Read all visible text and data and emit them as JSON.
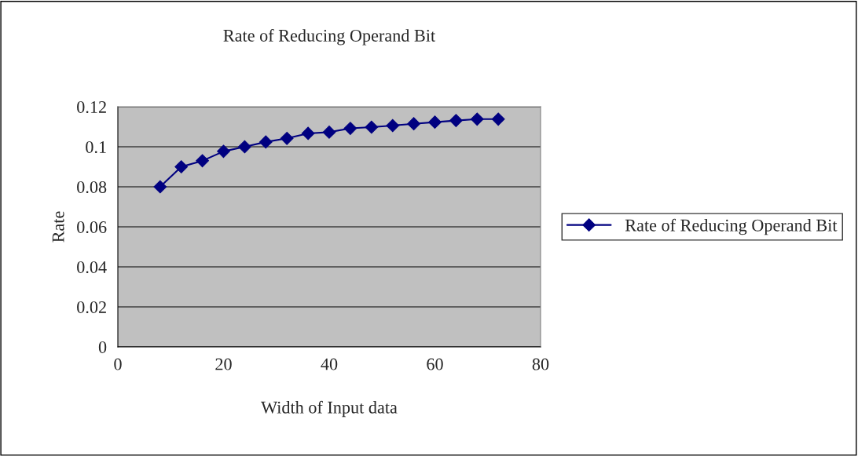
{
  "chart_data": {
    "type": "line",
    "title": "Rate of Reducing Operand Bit",
    "xlabel": "Width of Input data",
    "ylabel": "Rate",
    "x": [
      8,
      12,
      16,
      20,
      24,
      28,
      32,
      36,
      40,
      44,
      48,
      52,
      56,
      60,
      64,
      68,
      72
    ],
    "series": [
      {
        "name": "Rate of Reducing Operand Bit",
        "color": "#000080",
        "values": [
          0.08,
          0.09,
          0.093,
          0.0977,
          0.1,
          0.1024,
          0.1042,
          0.1067,
          0.1073,
          0.1092,
          0.1098,
          0.1106,
          0.1115,
          0.1123,
          0.1131,
          0.1138,
          0.1138
        ]
      }
    ],
    "xlim": [
      0,
      80
    ],
    "xticks": [
      0,
      20,
      40,
      60,
      80
    ],
    "ylim": [
      0,
      0.12
    ],
    "yticks": [
      0,
      0.02,
      0.04,
      0.06,
      0.08,
      0.1,
      0.12
    ],
    "grid": "y",
    "legend": "right",
    "marker": "diamond",
    "line_style": "solid"
  }
}
